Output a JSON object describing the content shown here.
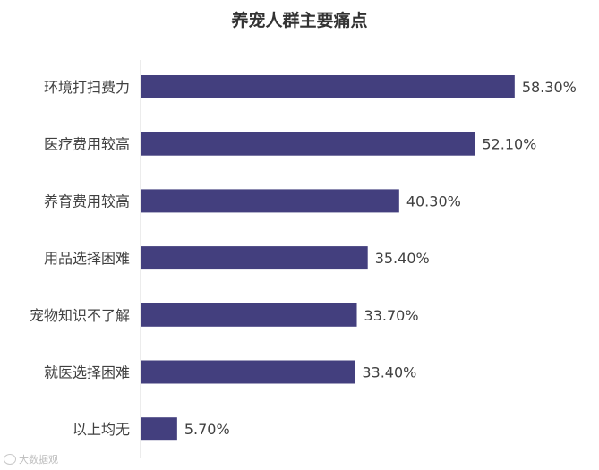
{
  "chart_data": {
    "type": "bar",
    "orientation": "horizontal",
    "title": "养宠人群主要痛点",
    "categories": [
      "环境打扫费力",
      "医疗费用较高",
      "养育费用较高",
      "用品选择困难",
      "宠物知识不了解",
      "就医选择困难",
      "以上均无"
    ],
    "values": [
      58.3,
      52.1,
      40.3,
      35.4,
      33.7,
      33.4,
      5.7
    ],
    "data_labels": [
      "58.30%",
      "52.10%",
      "40.30%",
      "35.40%",
      "33.70%",
      "33.40%",
      "5.70%"
    ],
    "xlim": [
      0,
      60
    ],
    "grid": false,
    "legend": "none",
    "bar_color": "#433f7e",
    "axis_color": "#d9d9d9"
  },
  "watermark": {
    "text": "大数据观",
    "icon": "watermark-logo-icon"
  }
}
